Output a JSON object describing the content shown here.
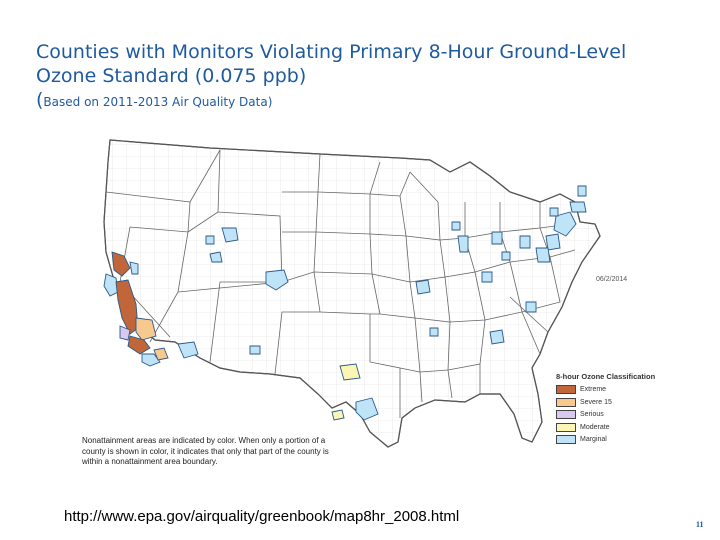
{
  "title": {
    "line1": "Counties with Monitors Violating Primary 8-Hour Ground-Level",
    "line2": "Ozone Standard (0.075 ppb)",
    "line3_open": "(",
    "line3_text": "Based on 2011-2013 Air Quality Data)"
  },
  "map": {
    "date": "06/2/2014",
    "legend_title": "8-hour Ozone Classification",
    "legend": [
      {
        "label": "Extreme",
        "color": "#c0663a"
      },
      {
        "label": "Severe 15",
        "color": "#f7c98f"
      },
      {
        "label": "Serious",
        "color": "#d9c8ef"
      },
      {
        "label": "Moderate",
        "color": "#fbf6b4"
      },
      {
        "label": "Marginal",
        "color": "#bfe3f7"
      }
    ],
    "note": "Nonattainment areas are indicated by color. When only a portion of a county is shown in color, it indicates that only that part of the county is within a nonattainment area boundary.",
    "colors": {
      "state_fill": "#ffffff",
      "border": "#5a5a5a",
      "county": "#d6d6d6"
    }
  },
  "footer": {
    "url": "http://www.epa.gov/airquality/greenbook/map8hr_2008.html",
    "slide_number": "11"
  }
}
